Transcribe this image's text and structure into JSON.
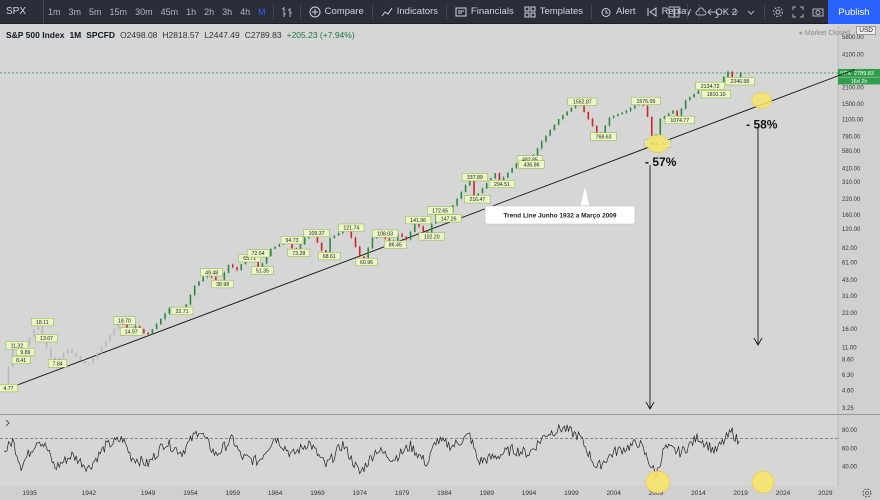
{
  "toolbar": {
    "symbol": "SPX",
    "intervals": [
      {
        "label": "1m",
        "active": false
      },
      {
        "label": "3m",
        "active": false
      },
      {
        "label": "5m",
        "active": false
      },
      {
        "label": "15m",
        "active": false
      },
      {
        "label": "30m",
        "active": false
      },
      {
        "label": "45m",
        "active": false
      },
      {
        "label": "1h",
        "active": false
      },
      {
        "label": "2h",
        "active": false
      },
      {
        "label": "3h",
        "active": false
      },
      {
        "label": "4h",
        "active": false
      },
      {
        "label": "M",
        "active": true
      }
    ],
    "compare_label": "Compare",
    "indicators_label": "Indicators",
    "financials_label": "Financials",
    "templates_label": "Templates",
    "alert_label": "Alert",
    "replay_label": "Replay",
    "layout_name": "OK 2",
    "publish_label": "Publish"
  },
  "legend": {
    "name": "S&P 500 Index",
    "interval": "1M",
    "source": "SPCFD",
    "open": "O2498.08",
    "high": "H2818.57",
    "low": "L2447.49",
    "close": "C2789.83",
    "change": "+205.23 (+7.94%)",
    "market_status": "Market Closed",
    "currency": "USD"
  },
  "chart_data": {
    "type": "line",
    "title": "S&P 500 Index",
    "y_scale": "log",
    "price_ticks": [
      "5800.00",
      "4100.00",
      "2900.00",
      "2100.00",
      "1500.00",
      "1100.00",
      "780.00",
      "580.00",
      "410.00",
      "310.00",
      "220.00",
      "160.00",
      "120.00",
      "82.00",
      "61.00",
      "43.00",
      "31.00",
      "22.00",
      "16.00",
      "11.00",
      "8.60",
      "6.30",
      "4.60",
      "3.25"
    ],
    "x_ticks": [
      "1935",
      "1942",
      "1949",
      "1954",
      "1959",
      "1964",
      "1969",
      "1974",
      "1979",
      "1984",
      "1989",
      "1994",
      "1999",
      "2004",
      "2009",
      "2014",
      "2019",
      "2024",
      "2029"
    ],
    "last_price": "2789.83",
    "last_symbol": "SPX",
    "last_countdown": "16d 2h",
    "price_series": [
      [
        1932.5,
        4.77
      ],
      [
        1933.5,
        11.32
      ],
      [
        1934.0,
        8.41
      ],
      [
        1934.5,
        9.89
      ],
      [
        1936.5,
        18.11
      ],
      [
        1937.0,
        13.07
      ],
      [
        1938.3,
        7.84
      ],
      [
        1940,
        10.5
      ],
      [
        1942.3,
        7.5
      ],
      [
        1944,
        11
      ],
      [
        1946.2,
        18.7
      ],
      [
        1947,
        14.97
      ],
      [
        1948,
        16.8
      ],
      [
        1949.4,
        13.9
      ],
      [
        1952,
        24
      ],
      [
        1953,
        22.71
      ],
      [
        1954,
        26
      ],
      [
        1955,
        38
      ],
      [
        1956.5,
        49.48
      ],
      [
        1957.8,
        38.98
      ],
      [
        1959,
        58
      ],
      [
        1960,
        52.2
      ],
      [
        1961,
        65.71
      ],
      [
        1962,
        72.64
      ],
      [
        1962.5,
        51.35
      ],
      [
        1964,
        80
      ],
      [
        1966,
        94.73
      ],
      [
        1966.8,
        73.28
      ],
      [
        1968,
        100
      ],
      [
        1968.9,
        109.37
      ],
      [
        1970.4,
        68.61
      ],
      [
        1971,
        99.54
      ],
      [
        1973,
        121.74
      ],
      [
        1974.8,
        60.96
      ],
      [
        1976,
        100
      ],
      [
        1977,
        108.03
      ],
      [
        1978.2,
        86.45
      ],
      [
        1979,
        108.05
      ],
      [
        1980.2,
        94.23
      ],
      [
        1980.9,
        141.96
      ],
      [
        1982.5,
        102.2
      ],
      [
        1983.5,
        172.65
      ],
      [
        1984.5,
        147.26
      ],
      [
        1987.6,
        337.89
      ],
      [
        1987.9,
        216.47
      ],
      [
        1990.5,
        368.95
      ],
      [
        1990.8,
        294.51
      ],
      [
        1993,
        450
      ],
      [
        1994.1,
        482.85
      ],
      [
        1994.3,
        436.86
      ],
      [
        1996,
        700
      ],
      [
        1998,
        1100
      ],
      [
        2000.3,
        1552.87
      ],
      [
        2001.5,
        1100
      ],
      [
        2002.8,
        768.63
      ],
      [
        2004,
        1130
      ],
      [
        2006,
        1300
      ],
      [
        2007.8,
        1576.09
      ],
      [
        2008.6,
        1100
      ],
      [
        2009.2,
        666.79
      ],
      [
        2010,
        1100
      ],
      [
        2011.5,
        1300
      ],
      [
        2011.8,
        1074.77
      ],
      [
        2013,
        1600
      ],
      [
        2014.5,
        1950
      ],
      [
        2015.4,
        2134.72
      ],
      [
        2016.1,
        1810.1
      ],
      [
        2017,
        2300
      ],
      [
        2018.0,
        2850
      ],
      [
        2018.9,
        2346.58
      ],
      [
        2019.1,
        2789.83
      ]
    ],
    "labels": [
      {
        "x": 1932.5,
        "y": 4.77,
        "text": "4.77"
      },
      {
        "x": 1933.5,
        "y": 11.32,
        "text": "11.32"
      },
      {
        "x": 1934.0,
        "y": 8.41,
        "text": "8.41"
      },
      {
        "x": 1934.5,
        "y": 9.89,
        "text": "9.89"
      },
      {
        "x": 1936.5,
        "y": 18.11,
        "text": "18.11"
      },
      {
        "x": 1937.0,
        "y": 13.07,
        "text": "13.07"
      },
      {
        "x": 1938.3,
        "y": 7.84,
        "text": "7.84"
      },
      {
        "x": 1946.2,
        "y": 18.7,
        "text": "18.70"
      },
      {
        "x": 1947.0,
        "y": 14.97,
        "text": "14.97"
      },
      {
        "x": 1953.0,
        "y": 22.71,
        "text": "22.71"
      },
      {
        "x": 1956.5,
        "y": 49.48,
        "text": "49.48"
      },
      {
        "x": 1957.8,
        "y": 38.98,
        "text": "38.98"
      },
      {
        "x": 1961.0,
        "y": 65.71,
        "text": "65.71"
      },
      {
        "x": 1962.0,
        "y": 72.64,
        "text": "72.64"
      },
      {
        "x": 1962.5,
        "y": 51.35,
        "text": "51.35"
      },
      {
        "x": 1966.0,
        "y": 94.73,
        "text": "94.73"
      },
      {
        "x": 1966.8,
        "y": 73.28,
        "text": "73.28"
      },
      {
        "x": 1968.9,
        "y": 109.37,
        "text": "109.37"
      },
      {
        "x": 1970.4,
        "y": 68.61,
        "text": "68.61"
      },
      {
        "x": 1973.0,
        "y": 121.74,
        "text": "121.74"
      },
      {
        "x": 1974.8,
        "y": 60.96,
        "text": "60.96"
      },
      {
        "x": 1977.0,
        "y": 108.03,
        "text": "108.03"
      },
      {
        "x": 1978.2,
        "y": 86.45,
        "text": "86.45"
      },
      {
        "x": 1980.9,
        "y": 141.96,
        "text": "141.96"
      },
      {
        "x": 1982.5,
        "y": 102.2,
        "text": "102.20"
      },
      {
        "x": 1983.5,
        "y": 172.65,
        "text": "172.65"
      },
      {
        "x": 1984.5,
        "y": 147.26,
        "text": "147.26"
      },
      {
        "x": 1987.6,
        "y": 337.89,
        "text": "337.89"
      },
      {
        "x": 1987.9,
        "y": 216.47,
        "text": "216.47"
      },
      {
        "x": 1990.8,
        "y": 294.51,
        "text": "294.51"
      },
      {
        "x": 1994.1,
        "y": 482.85,
        "text": "482.85"
      },
      {
        "x": 1994.3,
        "y": 436.86,
        "text": "436.86"
      },
      {
        "x": 2000.3,
        "y": 1552.87,
        "text": "1552.87"
      },
      {
        "x": 2002.8,
        "y": 768.63,
        "text": "768.63"
      },
      {
        "x": 2007.8,
        "y": 1576.09,
        "text": "1576.09"
      },
      {
        "x": 2009.2,
        "y": 666.79,
        "text": "666.79"
      },
      {
        "x": 2011.8,
        "y": 1074.77,
        "text": "1074.77"
      },
      {
        "x": 2015.4,
        "y": 2134.72,
        "text": "2134.72"
      },
      {
        "x": 2016.1,
        "y": 1810.1,
        "text": "1810.10"
      },
      {
        "x": 2018.9,
        "y": 2346.58,
        "text": "2346.58"
      }
    ],
    "trendline": {
      "from": [
        1932.5,
        4.77
      ],
      "to": [
        2009.2,
        666.79
      ],
      "label": "Trend Line Junho 1932  a  Março 2009"
    },
    "annotations": [
      {
        "text": "- 57%",
        "at": [
          2009.2,
          666.79
        ]
      },
      {
        "text": "- 58%",
        "at": [
          2021.5,
          1600
        ]
      }
    ],
    "rsi": {
      "ticks": [
        "80.00",
        "60.00",
        "40.00"
      ],
      "overbought": 70,
      "series": [
        [
          1932,
          55
        ],
        [
          1933,
          68
        ],
        [
          1934,
          40
        ],
        [
          1936,
          70
        ],
        [
          1937,
          60
        ],
        [
          1938,
          38
        ],
        [
          1940,
          52
        ],
        [
          1942,
          38
        ],
        [
          1944,
          62
        ],
        [
          1946,
          70
        ],
        [
          1947,
          50
        ],
        [
          1949,
          42
        ],
        [
          1951,
          66
        ],
        [
          1953,
          55
        ],
        [
          1955,
          80
        ],
        [
          1957,
          52
        ],
        [
          1959,
          70
        ],
        [
          1960,
          50
        ],
        [
          1962,
          45
        ],
        [
          1964,
          72
        ],
        [
          1966,
          52
        ],
        [
          1968,
          66
        ],
        [
          1970,
          40
        ],
        [
          1972,
          64
        ],
        [
          1974,
          32
        ],
        [
          1976,
          58
        ],
        [
          1978,
          48
        ],
        [
          1980,
          62
        ],
        [
          1982,
          42
        ],
        [
          1983,
          68
        ],
        [
          1985,
          62
        ],
        [
          1987,
          74
        ],
        [
          1988,
          45
        ],
        [
          1990,
          50
        ],
        [
          1992,
          58
        ],
        [
          1994,
          54
        ],
        [
          1996,
          75
        ],
        [
          1998,
          82
        ],
        [
          2000,
          72
        ],
        [
          2002,
          38
        ],
        [
          2004,
          55
        ],
        [
          2006,
          62
        ],
        [
          2007,
          66
        ],
        [
          2009,
          30
        ],
        [
          2010,
          60
        ],
        [
          2012,
          55
        ],
        [
          2014,
          72
        ],
        [
          2016,
          56
        ],
        [
          2018,
          78
        ],
        [
          2019,
          62
        ]
      ]
    }
  }
}
